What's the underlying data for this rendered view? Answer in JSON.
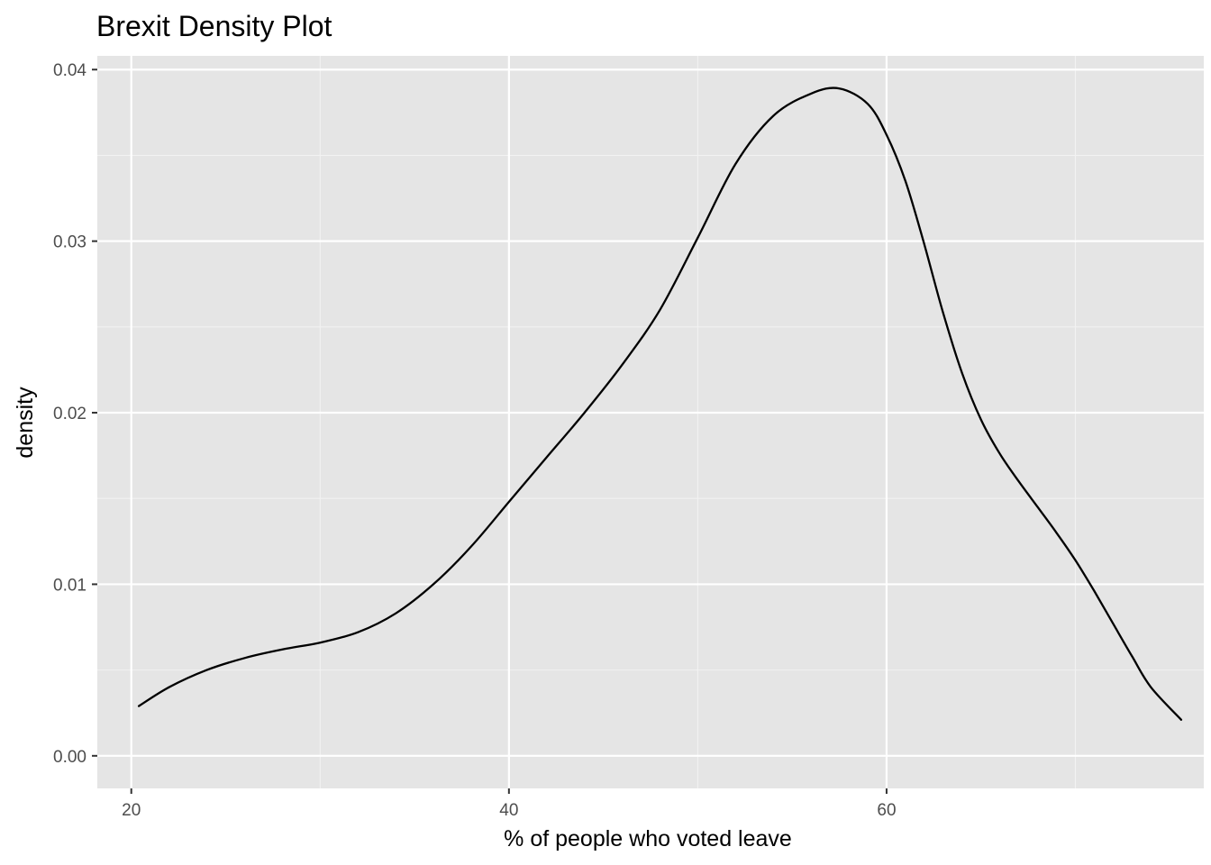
{
  "chart_data": {
    "type": "line",
    "title": "Brexit Density Plot",
    "xlabel": "% of people who voted leave",
    "ylabel": "density",
    "xlim": [
      18.2,
      76.8
    ],
    "ylim": [
      -0.0019,
      0.0408
    ],
    "x_ticks": [
      20,
      40,
      60
    ],
    "x_tick_labels": [
      "20",
      "40",
      "60"
    ],
    "x_minor_ticks": [
      30,
      50,
      70
    ],
    "y_ticks": [
      0.0,
      0.01,
      0.02,
      0.03,
      0.04
    ],
    "y_tick_labels": [
      "0.00",
      "0.01",
      "0.02",
      "0.03",
      "0.04"
    ],
    "y_minor_ticks": [
      0.005,
      0.015,
      0.025,
      0.035
    ],
    "grid": true,
    "legend": "none",
    "series": [
      {
        "x": [
          20.4,
          22.0,
          24.0,
          26.0,
          28.0,
          30.0,
          32.0,
          34.0,
          36.0,
          38.0,
          40.0,
          42.0,
          44.0,
          46.0,
          48.0,
          50.0,
          52.0,
          54.0,
          56.0,
          57.5,
          59.0,
          60.0,
          61.0,
          62.0,
          63.0,
          64.0,
          65.0,
          66.0,
          67.0,
          68.0,
          69.0,
          70.0,
          71.0,
          72.0,
          73.0,
          74.0,
          75.6
        ],
        "y": [
          0.0029,
          0.004,
          0.005,
          0.0057,
          0.0062,
          0.0066,
          0.0072,
          0.0083,
          0.01,
          0.0122,
          0.0148,
          0.0174,
          0.02,
          0.0228,
          0.026,
          0.0302,
          0.0345,
          0.0373,
          0.0386,
          0.0389,
          0.038,
          0.0362,
          0.0335,
          0.0298,
          0.0258,
          0.0223,
          0.0196,
          0.0176,
          0.016,
          0.0145,
          0.013,
          0.0114,
          0.0096,
          0.0077,
          0.0058,
          0.004,
          0.0021
        ],
        "color": "#000000"
      }
    ],
    "colors": {
      "panel_background": "#e5e5e5",
      "grid_major": "#ffffff",
      "grid_minor": "#f2f2f2",
      "line": "#000000",
      "tick_text": "#4d4d4d",
      "tick_mark": "#333333"
    }
  }
}
